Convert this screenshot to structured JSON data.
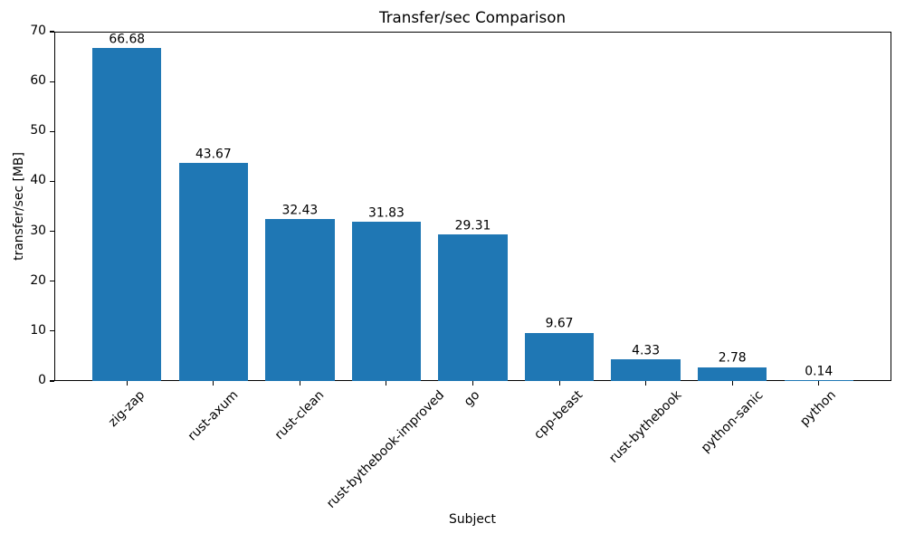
{
  "chart_data": {
    "type": "bar",
    "title": "Transfer/sec Comparison",
    "xlabel": "Subject",
    "ylabel": "transfer/sec [MB]",
    "categories": [
      "zig-zap",
      "rust-axum",
      "rust-clean",
      "rust-bythebook-improved",
      "go",
      "cpp-beast",
      "rust-bythebook",
      "python-sanic",
      "python"
    ],
    "values": [
      66.68,
      43.67,
      32.43,
      31.83,
      29.31,
      9.67,
      4.33,
      2.78,
      0.14
    ],
    "bar_value_labels": [
      "66.68",
      "43.67",
      "32.43",
      "31.83",
      "29.31",
      "9.67",
      "4.33",
      "2.78",
      "0.14"
    ],
    "ylim": [
      0,
      70
    ],
    "yticks": [
      0,
      10,
      20,
      30,
      40,
      50,
      60,
      70
    ],
    "xtick_rotation_deg": 45,
    "bar_color": "#1f77b4",
    "text_color": "#000000",
    "spine_color": "#000000",
    "grid": false,
    "legend": "none"
  }
}
